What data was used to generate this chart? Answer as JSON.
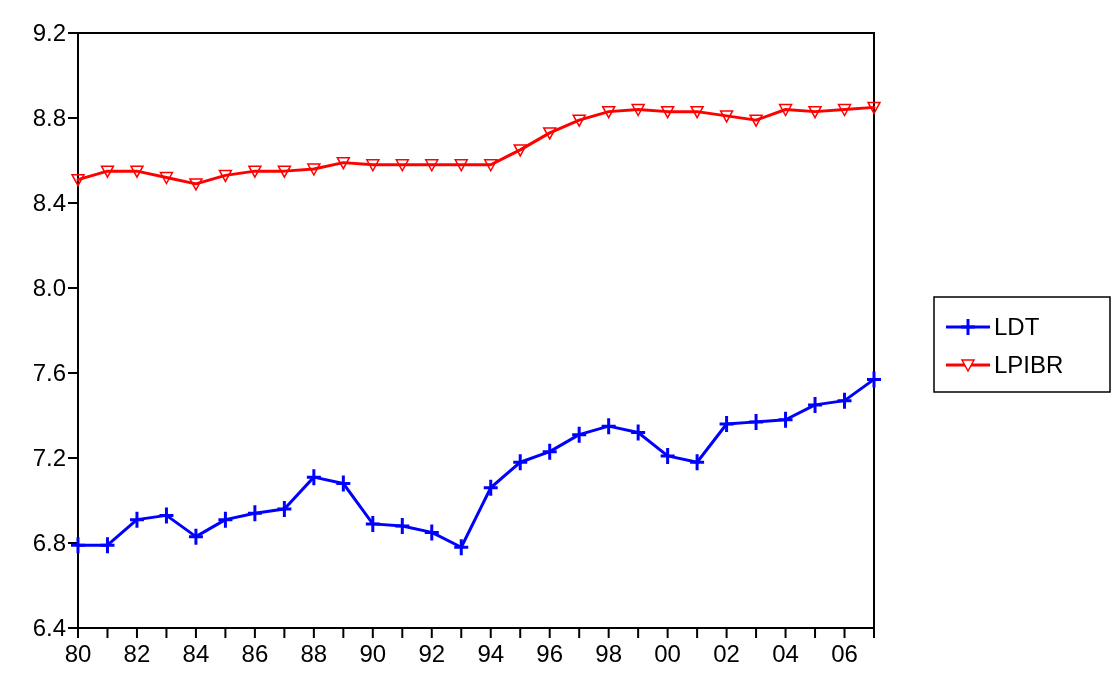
{
  "chart_data": {
    "type": "line",
    "x": [
      1980,
      1981,
      1982,
      1983,
      1984,
      1985,
      1986,
      1987,
      1988,
      1989,
      1990,
      1991,
      1992,
      1993,
      1994,
      1995,
      1996,
      1997,
      1998,
      1999,
      2000,
      2001,
      2002,
      2003,
      2004,
      2005,
      2006,
      2007
    ],
    "series": [
      {
        "name": "LDT",
        "color": "#0000ff",
        "marker": "cross",
        "values": [
          6.79,
          6.79,
          6.91,
          6.93,
          6.83,
          6.91,
          6.94,
          6.96,
          7.11,
          7.08,
          6.89,
          6.88,
          6.85,
          6.78,
          7.06,
          7.18,
          7.23,
          7.31,
          7.35,
          7.32,
          7.21,
          7.18,
          7.36,
          7.37,
          7.38,
          7.45,
          7.47,
          7.57
        ]
      },
      {
        "name": "LPIBR",
        "color": "#ff0000",
        "marker": "triangle",
        "values": [
          8.51,
          8.55,
          8.55,
          8.52,
          8.49,
          8.53,
          8.55,
          8.55,
          8.56,
          8.59,
          8.58,
          8.58,
          8.58,
          8.58,
          8.58,
          8.65,
          8.73,
          8.79,
          8.83,
          8.84,
          8.83,
          8.83,
          8.81,
          8.79,
          8.84,
          8.83,
          8.84,
          8.85
        ]
      }
    ],
    "xlim": [
      1980,
      2007
    ],
    "xticks": [
      {
        "value": 1980,
        "label": "80"
      },
      {
        "value": 1981,
        "label": null
      },
      {
        "value": 1982,
        "label": "82"
      },
      {
        "value": 1983,
        "label": null
      },
      {
        "value": 1984,
        "label": "84"
      },
      {
        "value": 1985,
        "label": null
      },
      {
        "value": 1986,
        "label": "86"
      },
      {
        "value": 1987,
        "label": null
      },
      {
        "value": 1988,
        "label": "88"
      },
      {
        "value": 1989,
        "label": null
      },
      {
        "value": 1990,
        "label": "90"
      },
      {
        "value": 1991,
        "label": null
      },
      {
        "value": 1992,
        "label": "92"
      },
      {
        "value": 1993,
        "label": null
      },
      {
        "value": 1994,
        "label": "94"
      },
      {
        "value": 1995,
        "label": null
      },
      {
        "value": 1996,
        "label": "96"
      },
      {
        "value": 1997,
        "label": null
      },
      {
        "value": 1998,
        "label": "98"
      },
      {
        "value": 1999,
        "label": null
      },
      {
        "value": 2000,
        "label": "00"
      },
      {
        "value": 2001,
        "label": null
      },
      {
        "value": 2002,
        "label": "02"
      },
      {
        "value": 2003,
        "label": null
      },
      {
        "value": 2004,
        "label": "04"
      },
      {
        "value": 2005,
        "label": null
      },
      {
        "value": 2006,
        "label": "06"
      },
      {
        "value": 2007,
        "label": null
      }
    ],
    "ylim": [
      6.4,
      9.2
    ],
    "yticks": [
      {
        "value": 6.4,
        "label": "6.4"
      },
      {
        "value": 6.8,
        "label": "6.8"
      },
      {
        "value": 7.2,
        "label": "7.2"
      },
      {
        "value": 7.6,
        "label": "7.6"
      },
      {
        "value": 8.0,
        "label": "8.0"
      },
      {
        "value": 8.4,
        "label": "8.4"
      },
      {
        "value": 8.8,
        "label": "8.8"
      },
      {
        "value": 9.2,
        "label": "9.2"
      }
    ],
    "legend": "right",
    "line_style": "solid"
  }
}
